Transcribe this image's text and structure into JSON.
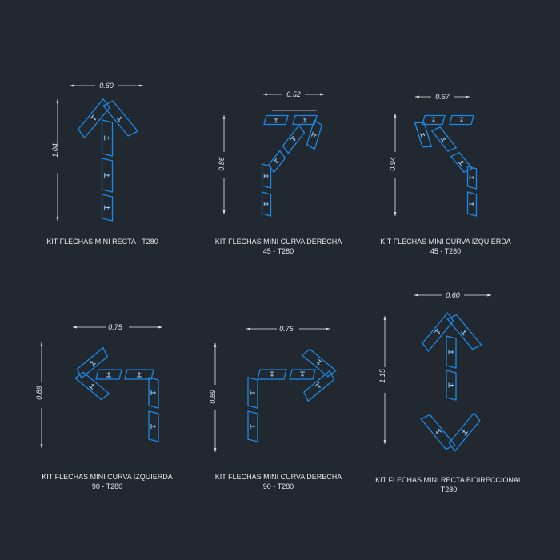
{
  "colors": {
    "background": "#212830",
    "arrow": "#1e88e5",
    "arrow_detail": "#90caf9",
    "text": "#e8e8e8"
  },
  "arrows": [
    {
      "type": "recta",
      "title_line1": "KIT FLECHAS MINI RECTA -  T280",
      "title_line2": "",
      "width_dim": "0.60",
      "height_dim": "1.04"
    },
    {
      "type": "curva-derecha-45",
      "title_line1": "KIT FLECHAS MINI CURVA DERECHA",
      "title_line2": "45 -  T280",
      "width_dim": "0.52",
      "height_dim": "0.86"
    },
    {
      "type": "curva-izquierda-45",
      "title_line1": "KIT FLECHAS MINI CURVA IZQUIERDA",
      "title_line2": "45 -  T280",
      "width_dim": "0.67",
      "height_dim": "0.94"
    },
    {
      "type": "curva-izquierda-90",
      "title_line1": "KIT FLECHAS MINI CURVA  IZQUIERDA",
      "title_line2": "90 -  T280",
      "width_dim": "0.75",
      "height_dim": "0.89"
    },
    {
      "type": "curva-derecha-90",
      "title_line1": "KIT FLECHAS MINI CURVA   DERECHA",
      "title_line2": "90 - T280",
      "width_dim": "0.75",
      "height_dim": "0.89"
    },
    {
      "type": "recta-bidireccional",
      "title_line1": "KIT FLECHAS MINI RECTA BIDIRECCIONAL",
      "title_line2": "T280",
      "width_dim": "0.60",
      "height_dim": "1.15"
    }
  ]
}
